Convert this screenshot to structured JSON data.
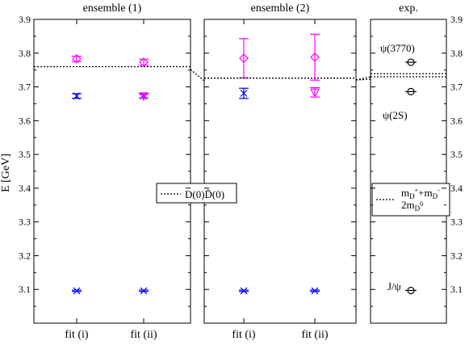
{
  "chart_data": {
    "type": "scatter",
    "ylabel": "E [GeV]",
    "ylim": [
      3.0,
      3.9
    ],
    "yticks": [
      "3.1",
      "3.2",
      "3.3",
      "3.4",
      "3.5",
      "3.6",
      "3.7",
      "3.8",
      "3.9"
    ],
    "colors": {
      "blue": "#0000ff",
      "magenta": "#ff00ff",
      "black": "#000000"
    },
    "panels": [
      {
        "title": "ensemble (1)",
        "categories": [
          "fit (i)",
          "fit (ii)"
        ],
        "series": [
          {
            "color": "#0000ff",
            "marker": "x",
            "values": [
              3.096,
              3.096
            ],
            "err": [
              0.002,
              0.002
            ]
          },
          {
            "color": "#0000ff",
            "marker": "x",
            "values": [
              3.673,
              3.673
            ],
            "err": [
              0.007,
              0.006
            ]
          },
          {
            "color": "#ff00ff",
            "marker": "triangle-down",
            "values": [
              null,
              3.673
            ],
            "err": [
              0,
              0.006
            ]
          },
          {
            "color": "#ff00ff",
            "marker": "diamond",
            "values": [
              3.783,
              3.773
            ],
            "err": [
              0.008,
              0.009
            ]
          }
        ],
        "threshold": [
          3.76,
          3.76
        ],
        "legend": "D(0)D̄(0)"
      },
      {
        "title": "ensemble (2)",
        "categories": [
          "fit (i)",
          "fit (ii)"
        ],
        "series": [
          {
            "color": "#0000ff",
            "marker": "x",
            "values": [
              3.096,
              3.096
            ],
            "err": [
              0.002,
              0.002
            ]
          },
          {
            "color": "#0000ff",
            "marker": "x",
            "values": [
              3.681,
              null
            ],
            "err": [
              0.015,
              0
            ]
          },
          {
            "color": "#ff00ff",
            "marker": "triangle-down",
            "values": [
              null,
              3.684
            ],
            "err": [
              0,
              0.014
            ]
          },
          {
            "color": "#ff00ff",
            "marker": "diamond",
            "values": [
              3.785,
              3.788
            ],
            "err": [
              0.058,
              0.068
            ]
          }
        ],
        "threshold": [
          3.726,
          3.726
        ]
      },
      {
        "title": "exp.",
        "points": [
          {
            "label": "J/ψ",
            "value": 3.097
          },
          {
            "label": "ψ(2S)",
            "value": 3.686
          },
          {
            "label": "ψ(3770)",
            "value": 3.773
          }
        ],
        "thresholds": [
          3.73,
          3.739
        ],
        "legend_line1": "m",
        "legend_sub1a": "D",
        "legend_sup1a": "+",
        "legend_plus": "+m",
        "legend_sub1b": "D",
        "legend_sup1b": "-",
        "legend_line2": "2m",
        "legend_sub2": "D",
        "legend_sup2": "0"
      }
    ]
  }
}
